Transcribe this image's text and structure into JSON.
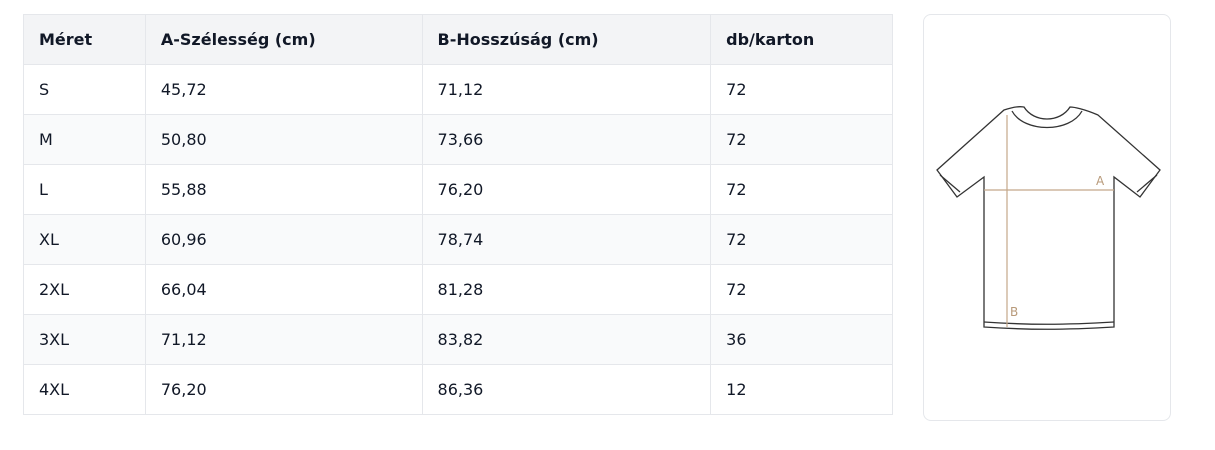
{
  "table": {
    "header": [
      "Méret",
      "A-Szélesség (cm)",
      "B-Hosszúság (cm)",
      "db/karton"
    ],
    "rows": [
      [
        "S",
        "45,72",
        "71,12",
        "72"
      ],
      [
        "M",
        "50,80",
        "73,66",
        "72"
      ],
      [
        "L",
        "55,88",
        "76,20",
        "72"
      ],
      [
        "XL",
        "60,96",
        "78,74",
        "72"
      ],
      [
        "2XL",
        "66,04",
        "81,28",
        "72"
      ],
      [
        "3XL",
        "71,12",
        "83,82",
        "36"
      ],
      [
        "4XL",
        "76,20",
        "86,36",
        "12"
      ]
    ]
  },
  "diagram": {
    "width_label": "A",
    "length_label": "B"
  }
}
